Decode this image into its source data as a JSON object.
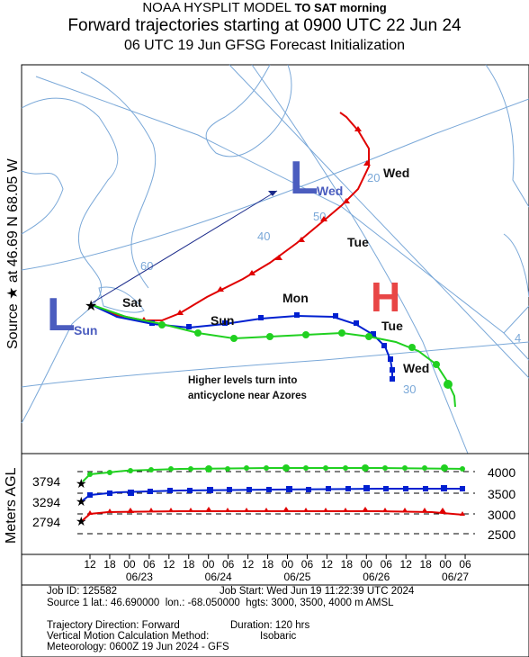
{
  "header": {
    "line1": "NOAA HYSPLIT MODEL",
    "line1_note": "TO SAT morning",
    "line2": "Forward trajectories starting at 0900 UTC 22 Jun 24",
    "line3": "06 UTC 19 Jun    GFSG  Forecast Initialization"
  },
  "side_labels": {
    "map": "Source ★ at   46.69 N   68.05 W",
    "chart": "Meters AGL"
  },
  "map": {
    "lat_labels": [
      "20",
      "50",
      "40",
      "60",
      "30"
    ],
    "lon_labels": [
      "4"
    ],
    "pressure_systems": [
      {
        "letter": "L",
        "sub": "Wed",
        "color": "#4b5dbf"
      },
      {
        "letter": "L",
        "sub": "Sun",
        "color": "#4b5dbf"
      },
      {
        "letter": "H",
        "sub": "",
        "color": "#e84646"
      }
    ],
    "day_labels": [
      "Wed",
      "Tue",
      "Mon",
      "Sat",
      "Sun",
      "Tue",
      "Wed"
    ],
    "annotation": [
      "Higher levels turn into",
      "anticyclone near Azores"
    ],
    "colors": {
      "red": "#e00000",
      "blue": "#0020d0",
      "green": "#20d020",
      "map_lines": "#7aa8d8"
    }
  },
  "chart": {
    "heights": [
      "3794",
      "3294",
      "2794"
    ],
    "right_ticks": [
      "4000",
      "3500",
      "3000",
      "2500"
    ],
    "hour_ticks": [
      "12",
      "18",
      "00",
      "06",
      "12",
      "18",
      "00",
      "06",
      "12",
      "18",
      "00",
      "06",
      "12",
      "18",
      "00",
      "06",
      "12",
      "18",
      "00",
      "06"
    ],
    "date_ticks": [
      "06/23",
      "06/24",
      "06/25",
      "06/26",
      "06/27"
    ]
  },
  "footer": {
    "job_id": "Job ID: 125582",
    "job_start": "Job Start: Wed Jun 19 11:22:39 UTC 2024",
    "source": "Source 1 lat.: 46.690000  lon.: -68.050000  hgts: 3000, 3500, 4000 m AMSL",
    "direction": "Trajectory Direction: Forward",
    "duration": "Duration: 120 hrs",
    "vertical_label": "Vertical Motion Calculation Method:",
    "vertical_value": "Isobaric",
    "meteorology": "Meteorology: 0600Z 19 Jun 2024 - GFS"
  }
}
